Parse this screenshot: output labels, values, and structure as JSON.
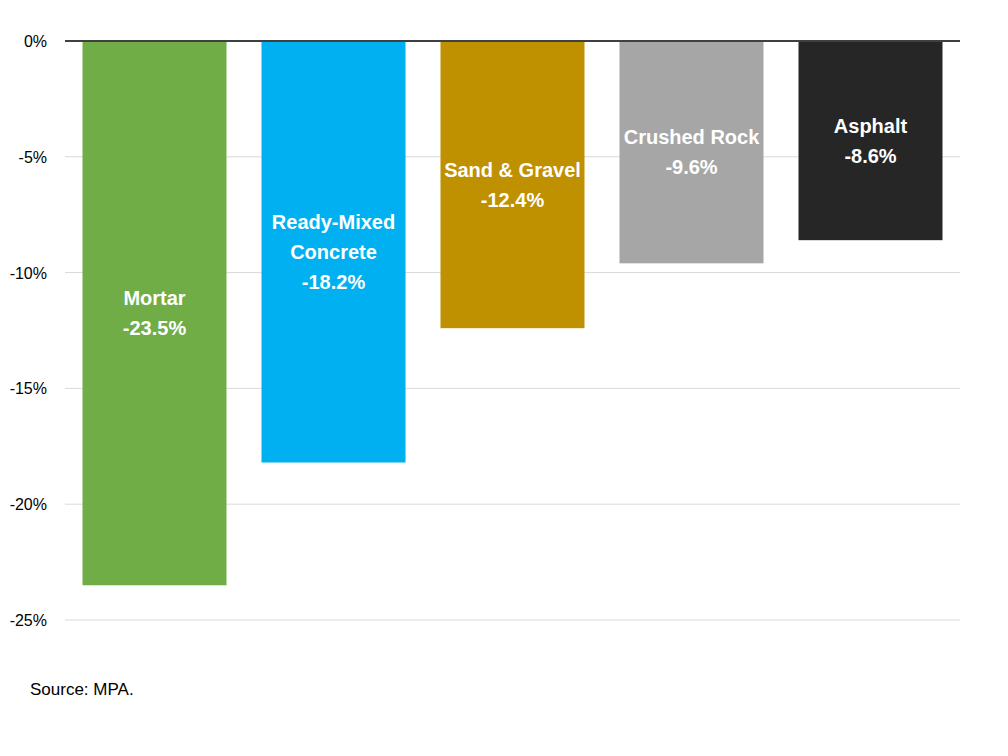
{
  "chart_data": {
    "type": "bar",
    "categories": [
      "Mortar",
      "Ready-Mixed Concrete",
      "Sand & Gravel",
      "Crushed Rock",
      "Asphalt"
    ],
    "values": [
      -23.5,
      -18.2,
      -12.4,
      -9.6,
      -8.6
    ],
    "value_labels": [
      "-23.5%",
      "-18.2%",
      "-12.4%",
      "-9.6%",
      "-8.6%"
    ],
    "colors": [
      "#70ad47",
      "#00b0f0",
      "#bf9000",
      "#a6a6a6",
      "#262626"
    ],
    "ylim": [
      -25,
      0
    ],
    "yticks": [
      {
        "value": 0,
        "label": "0%"
      },
      {
        "value": -5,
        "label": "-5%"
      },
      {
        "value": -10,
        "label": "-10%"
      },
      {
        "value": -15,
        "label": "-15%"
      },
      {
        "value": -20,
        "label": "-20%"
      },
      {
        "value": -25,
        "label": "-25%"
      }
    ],
    "grid": true,
    "data_labels": true,
    "annotations": [
      "Source: MPA."
    ]
  }
}
